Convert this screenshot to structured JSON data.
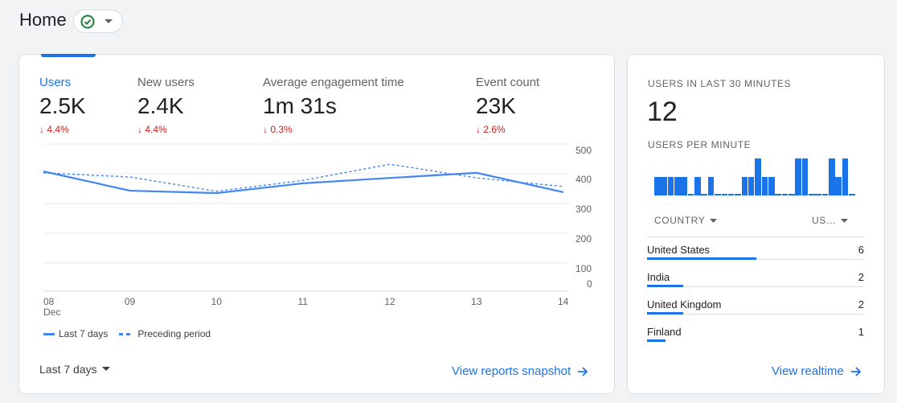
{
  "header": {
    "title": "Home",
    "status_icon": "check-circle-icon"
  },
  "metrics": [
    {
      "label": "Users",
      "value": "2.5K",
      "change": "4.4%",
      "active": true
    },
    {
      "label": "New users",
      "value": "2.4K",
      "change": "4.4%"
    },
    {
      "label": "Average engagement time",
      "value": "1m 31s",
      "change": "0.3%"
    },
    {
      "label": "Event count",
      "value": "23K",
      "change": "2.6%"
    }
  ],
  "chart_data": {
    "type": "line",
    "x": [
      "08",
      "09",
      "10",
      "11",
      "12",
      "13",
      "14"
    ],
    "x_sublabel": "Dec",
    "yticks": [
      "500",
      "400",
      "300",
      "200",
      "100",
      "0"
    ],
    "ylim": [
      0,
      500
    ],
    "series": [
      {
        "name": "Last 7 days",
        "style": "solid",
        "values": [
          408,
          343,
          335,
          368,
          386,
          403,
          338
        ]
      },
      {
        "name": "Preceding period",
        "style": "dashed",
        "values": [
          403,
          389,
          341,
          378,
          432,
          386,
          357
        ]
      }
    ],
    "color": "#4285f4"
  },
  "date_range": "Last 7 days",
  "view_reports": "View reports snapshot",
  "realtime": {
    "title": "USERS IN LAST 30 MINUTES",
    "count": "12",
    "per_minute_label": "USERS PER MINUTE",
    "per_minute": [
      1,
      1,
      1,
      1,
      1,
      0,
      1,
      0,
      1,
      0,
      0,
      0,
      0,
      1,
      1,
      2,
      1,
      1,
      0,
      0,
      0,
      2,
      2,
      0,
      0,
      0,
      2,
      1,
      2,
      0
    ],
    "col_country": "COUNTRY",
    "col_users": "US…",
    "rows": [
      {
        "country": "United States",
        "users": "6",
        "share": 1
      },
      {
        "country": "India",
        "users": "2",
        "share": 0.33
      },
      {
        "country": "United Kingdom",
        "users": "2",
        "share": 0.33
      },
      {
        "country": "Finland",
        "users": "1",
        "share": 0.17
      }
    ],
    "view_realtime": "View realtime"
  }
}
